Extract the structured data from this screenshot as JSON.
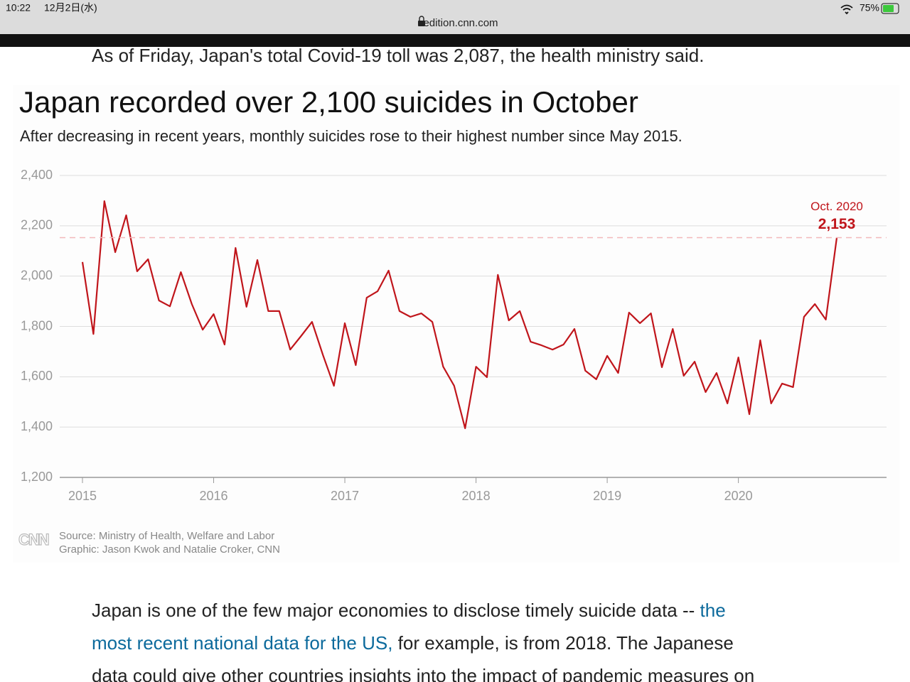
{
  "status_bar": {
    "time": "10:22",
    "date": "12月2日(水)",
    "battery": "75%"
  },
  "browser": {
    "url": "edition.cnn.com"
  },
  "article": {
    "paragraph_1": "As of Friday, Japan's total Covid-19 toll was 2,087, the health ministry said.",
    "paragraph_2": {
      "lines": [
        [
          {
            "text": "Japan is one of the few major economies to disclose timely suicide data -- "
          },
          {
            "link": "the"
          }
        ],
        [
          {
            "link": "most recent national data for the US,"
          },
          {
            "text": " for example, is from 2018. The Japanese"
          }
        ],
        [
          {
            "text": "data could give other countries insights into the impact of pandemic measures on"
          }
        ]
      ]
    }
  },
  "chart_data": {
    "type": "line",
    "title": "Japan recorded over 2,100 suicides in October",
    "subtitle": "After decreasing in recent years, monthly suicides rose to their highest number since May 2015.",
    "categories": [
      "2015",
      null,
      null,
      null,
      null,
      null,
      null,
      null,
      null,
      null,
      null,
      null,
      "2016",
      null,
      null,
      null,
      null,
      null,
      null,
      null,
      null,
      null,
      null,
      null,
      "2017",
      null,
      null,
      null,
      null,
      null,
      null,
      null,
      null,
      null,
      null,
      null,
      "2018",
      null,
      null,
      null,
      null,
      null,
      null,
      null,
      null,
      null,
      null,
      null,
      "2019",
      null,
      null,
      null,
      null,
      null,
      null,
      null,
      null,
      null,
      null,
      null,
      "2020",
      null,
      null,
      null,
      null,
      null,
      null,
      null,
      null,
      null
    ],
    "series": [
      {
        "color": "#c0151b",
        "values": [
          2056,
          1770,
          2298,
          2095,
          2242,
          2019,
          2067,
          1903,
          1880,
          2016,
          1889,
          1787,
          1849,
          1728,
          2112,
          1878,
          2064,
          1861,
          1861,
          1708,
          1762,
          1818,
          1686,
          1564,
          1813,
          1646,
          1914,
          1940,
          2022,
          1861,
          1838,
          1852,
          1818,
          1640,
          1564,
          1395,
          1640,
          1598,
          2005,
          1824,
          1861,
          1739,
          1725,
          1708,
          1728,
          1790,
          1624,
          1590,
          1683,
          1615,
          1855,
          1813,
          1852,
          1638,
          1790,
          1604,
          1660,
          1539,
          1615,
          1494,
          1677,
          1451,
          1745,
          1494,
          1573,
          1559,
          1838,
          1889,
          1827,
          2153
        ],
        "value_labels": [
          null,
          null,
          null,
          null,
          null,
          null,
          null,
          null,
          null,
          null,
          null,
          null,
          null,
          null,
          null,
          null,
          null,
          null,
          null,
          null,
          null,
          null,
          null,
          null,
          null,
          null,
          null,
          null,
          null,
          null,
          null,
          null,
          null,
          null,
          null,
          null,
          null,
          null,
          null,
          null,
          null,
          null,
          null,
          null,
          null,
          null,
          null,
          null,
          null,
          null,
          null,
          null,
          null,
          null,
          null,
          null,
          null,
          null,
          null,
          null,
          null,
          null,
          null,
          null,
          null,
          null,
          null,
          null,
          null,
          "2,153"
        ]
      }
    ],
    "annotation": "Oct. 2020",
    "ylim": [
      1200,
      2400
    ],
    "yticks": [
      {
        "value": 1200,
        "label": "1,200"
      },
      {
        "value": 1400,
        "label": "1,400"
      },
      {
        "value": 1600,
        "label": "1,600"
      },
      {
        "value": 1800,
        "label": "1,800"
      },
      {
        "value": 2000,
        "label": "2,000"
      },
      {
        "value": 2200,
        "label": "2,200"
      },
      {
        "value": 2400,
        "label": "2,400"
      }
    ],
    "grid": true,
    "logo": "CNN",
    "source": "Source: Ministry of Health, Welfare and Labor",
    "credit": "Graphic: Jason Kwok and Natalie Croker, CNN"
  }
}
